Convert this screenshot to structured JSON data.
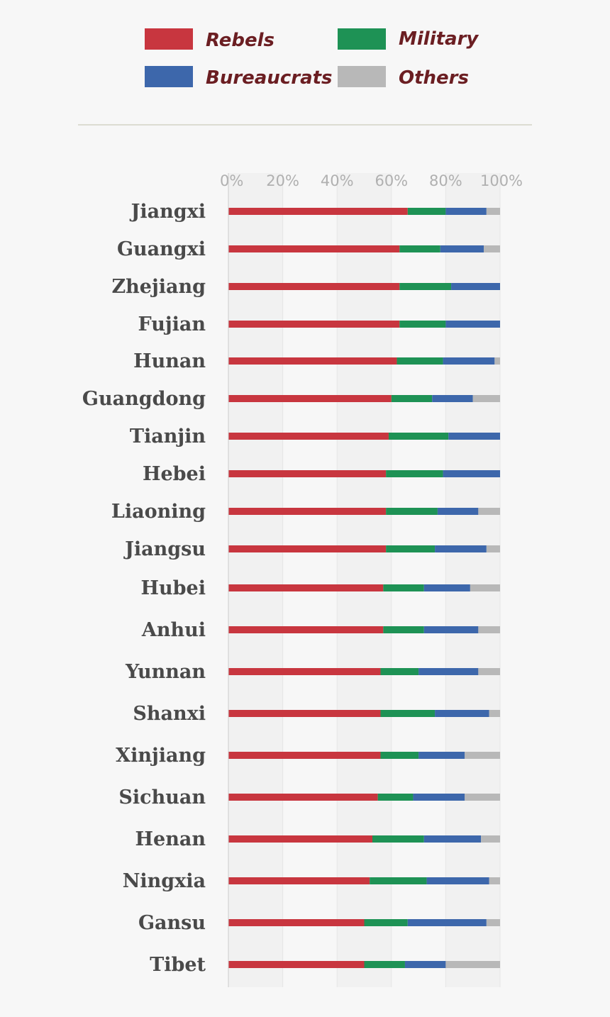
{
  "chart_data": {
    "type": "bar",
    "orientation": "horizontal",
    "stacked": true,
    "percent": true,
    "xlim": [
      0,
      100
    ],
    "x_ticks": [
      "0%",
      "20%",
      "40%",
      "60%",
      "80%",
      "100%"
    ],
    "legend_position": "top",
    "categories": [
      "Jiangxi",
      "Guangxi",
      "Zhejiang",
      "Fujian",
      "Hunan",
      "Guangdong",
      "Tianjin",
      "Hebei",
      "Liaoning",
      "Jiangsu",
      "Hubei",
      "Anhui",
      "Yunnan",
      "Shanxi",
      "Xinjiang",
      "Sichuan",
      "Henan",
      "Ningxia",
      "Gansu",
      "Tibet"
    ],
    "series": [
      {
        "name": "Rebels",
        "color": "#c8363f",
        "values": [
          66,
          63,
          63,
          63,
          62,
          60,
          59,
          58,
          58,
          58,
          57,
          57,
          56,
          56,
          56,
          55,
          53,
          52,
          50,
          50
        ]
      },
      {
        "name": "Military",
        "color": "#1e9255",
        "values": [
          14,
          15,
          19,
          17,
          17,
          15,
          22,
          21,
          19,
          18,
          15,
          15,
          14,
          20,
          14,
          13,
          19,
          21,
          16,
          15
        ]
      },
      {
        "name": "Bureaucrats",
        "color": "#3d67ab",
        "values": [
          15,
          16,
          18,
          20,
          19,
          15,
          19,
          21,
          15,
          19,
          17,
          20,
          22,
          20,
          17,
          19,
          21,
          23,
          29,
          15
        ]
      },
      {
        "name": "Others",
        "color": "#b8b8b8",
        "values": [
          5,
          6,
          0,
          0,
          2,
          10,
          0,
          0,
          8,
          5,
          11,
          8,
          8,
          4,
          13,
          13,
          7,
          4,
          5,
          20
        ]
      }
    ],
    "grid": true,
    "label_color": "#6b1e22",
    "axis_label_color": "#b0b0b0",
    "category_label_color": "#4a4a4a"
  }
}
